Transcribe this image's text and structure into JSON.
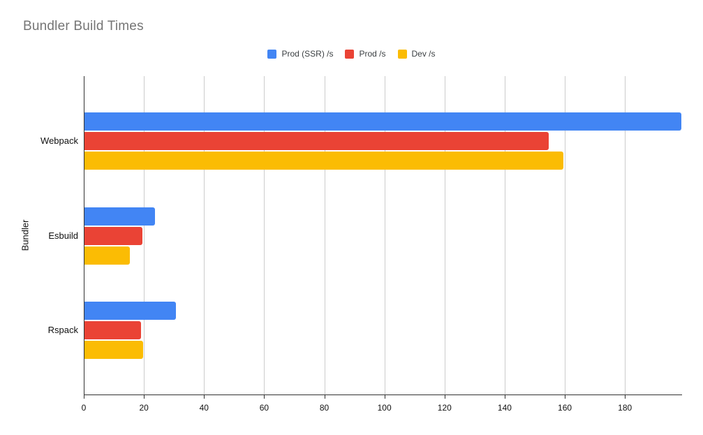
{
  "chart_data": {
    "type": "bar",
    "orientation": "horizontal",
    "title": "Bundler Build Times",
    "xlabel": "",
    "ylabel": "Bundler",
    "categories": [
      "Webpack",
      "Esbuild",
      "Rspack"
    ],
    "series": [
      {
        "name": "Prod (SSR) /s",
        "color": "#4285F4",
        "values": [
          198.8,
          23.4,
          30.4
        ]
      },
      {
        "name": "Prod /s",
        "color": "#EA4335",
        "values": [
          154.5,
          19.3,
          18.9
        ]
      },
      {
        "name": "Dev /s",
        "color": "#FBBC04",
        "values": [
          159.4,
          15.2,
          19.6
        ]
      }
    ],
    "x_axis": {
      "min": 0,
      "max": 199,
      "tick_step": 20,
      "ticks": [
        0,
        20,
        40,
        60,
        80,
        100,
        120,
        140,
        160,
        180
      ]
    },
    "grid": true,
    "legend_position": "top",
    "colors": {
      "background": "#ffffff",
      "gridline": "#cccccc",
      "axis": "#333333",
      "title_text": "#757575",
      "label_text": "#111111",
      "legend_text": "#3c4043"
    }
  }
}
